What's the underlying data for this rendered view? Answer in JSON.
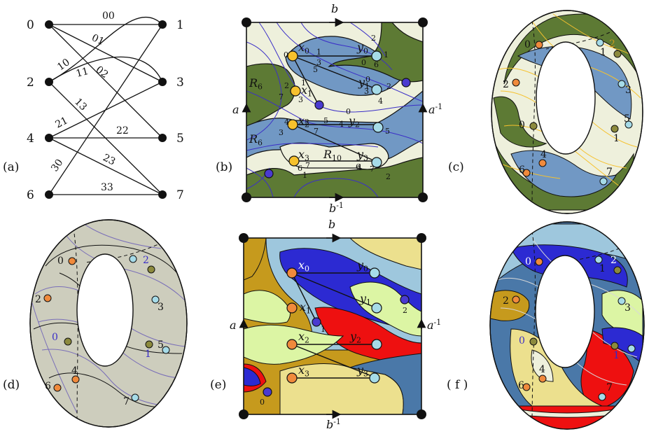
{
  "panels": {
    "a": {
      "tag": "(a)",
      "left_nodes": [
        "0",
        "2",
        "4",
        "6"
      ],
      "right_nodes": [
        "1",
        "3",
        "5",
        "7"
      ],
      "edge_labels": [
        "00",
        "01",
        "02",
        "10",
        "11",
        "13",
        "21",
        "22",
        "23",
        "30",
        "33"
      ]
    },
    "b": {
      "tag": "(b)",
      "side_labels": {
        "top": "b",
        "bottom": "b-1",
        "left": "a",
        "right": "a-1"
      },
      "x_nodes": [
        "x0",
        "x1",
        "x2",
        "x3"
      ],
      "y_nodes": [
        "y0",
        "y1",
        "y2",
        "y3"
      ],
      "regions": [
        "R6",
        "R6",
        "R10"
      ],
      "port_numbers": [
        "0",
        "1",
        "3",
        "5",
        "2",
        "1",
        "7",
        "3",
        "4",
        "2",
        "5",
        "3",
        "7",
        "6",
        "7",
        "1",
        "2",
        "1",
        "0",
        "6",
        "0",
        "3",
        "4",
        "0",
        "2",
        "4",
        "5",
        "4",
        "6",
        "7",
        "2"
      ]
    },
    "c": {
      "tag": "(c)",
      "labels": [
        "0",
        "1",
        "2",
        "2",
        "3",
        "0",
        "1",
        "5",
        "4",
        "6",
        "7"
      ]
    },
    "d": {
      "tag": "(d)",
      "labels": [
        "0",
        "2",
        "2",
        "3",
        "0",
        "1",
        "5",
        "4",
        "6",
        "7"
      ]
    },
    "e": {
      "tag": "(e)",
      "side_labels": {
        "top": "b",
        "bottom": "b-1",
        "left": "a",
        "right": "a-1"
      },
      "x_nodes": [
        "x0",
        "x1",
        "x2",
        "x3"
      ],
      "y_nodes": [
        "y0",
        "y1",
        "y2",
        "y3"
      ],
      "vertex_labels": [
        "2",
        "1",
        "0"
      ]
    },
    "f": {
      "tag": "( f )",
      "labels": [
        "0",
        "1",
        "2",
        "2",
        "3",
        "0",
        "1",
        "4",
        "6",
        "7"
      ]
    }
  },
  "colors": {
    "node_orange": "#f08a3c",
    "node_yellow": "#f6c12d",
    "node_cyan": "#a6dbe8",
    "node_blue": "#4a3ad0",
    "node_olive": "#8c8a3d",
    "green_dark": "#5d7a34",
    "blue_mid": "#7198c4",
    "cream": "#eef0dc",
    "gold": "#c69a1d",
    "sand": "#ece08e",
    "sky": "#9ec7dd",
    "steel": "#4a78a8",
    "navy": "#2c2ad2",
    "red": "#ee1010",
    "lime": "#dcf5a4",
    "grey_bg": "#cdcdbd"
  }
}
